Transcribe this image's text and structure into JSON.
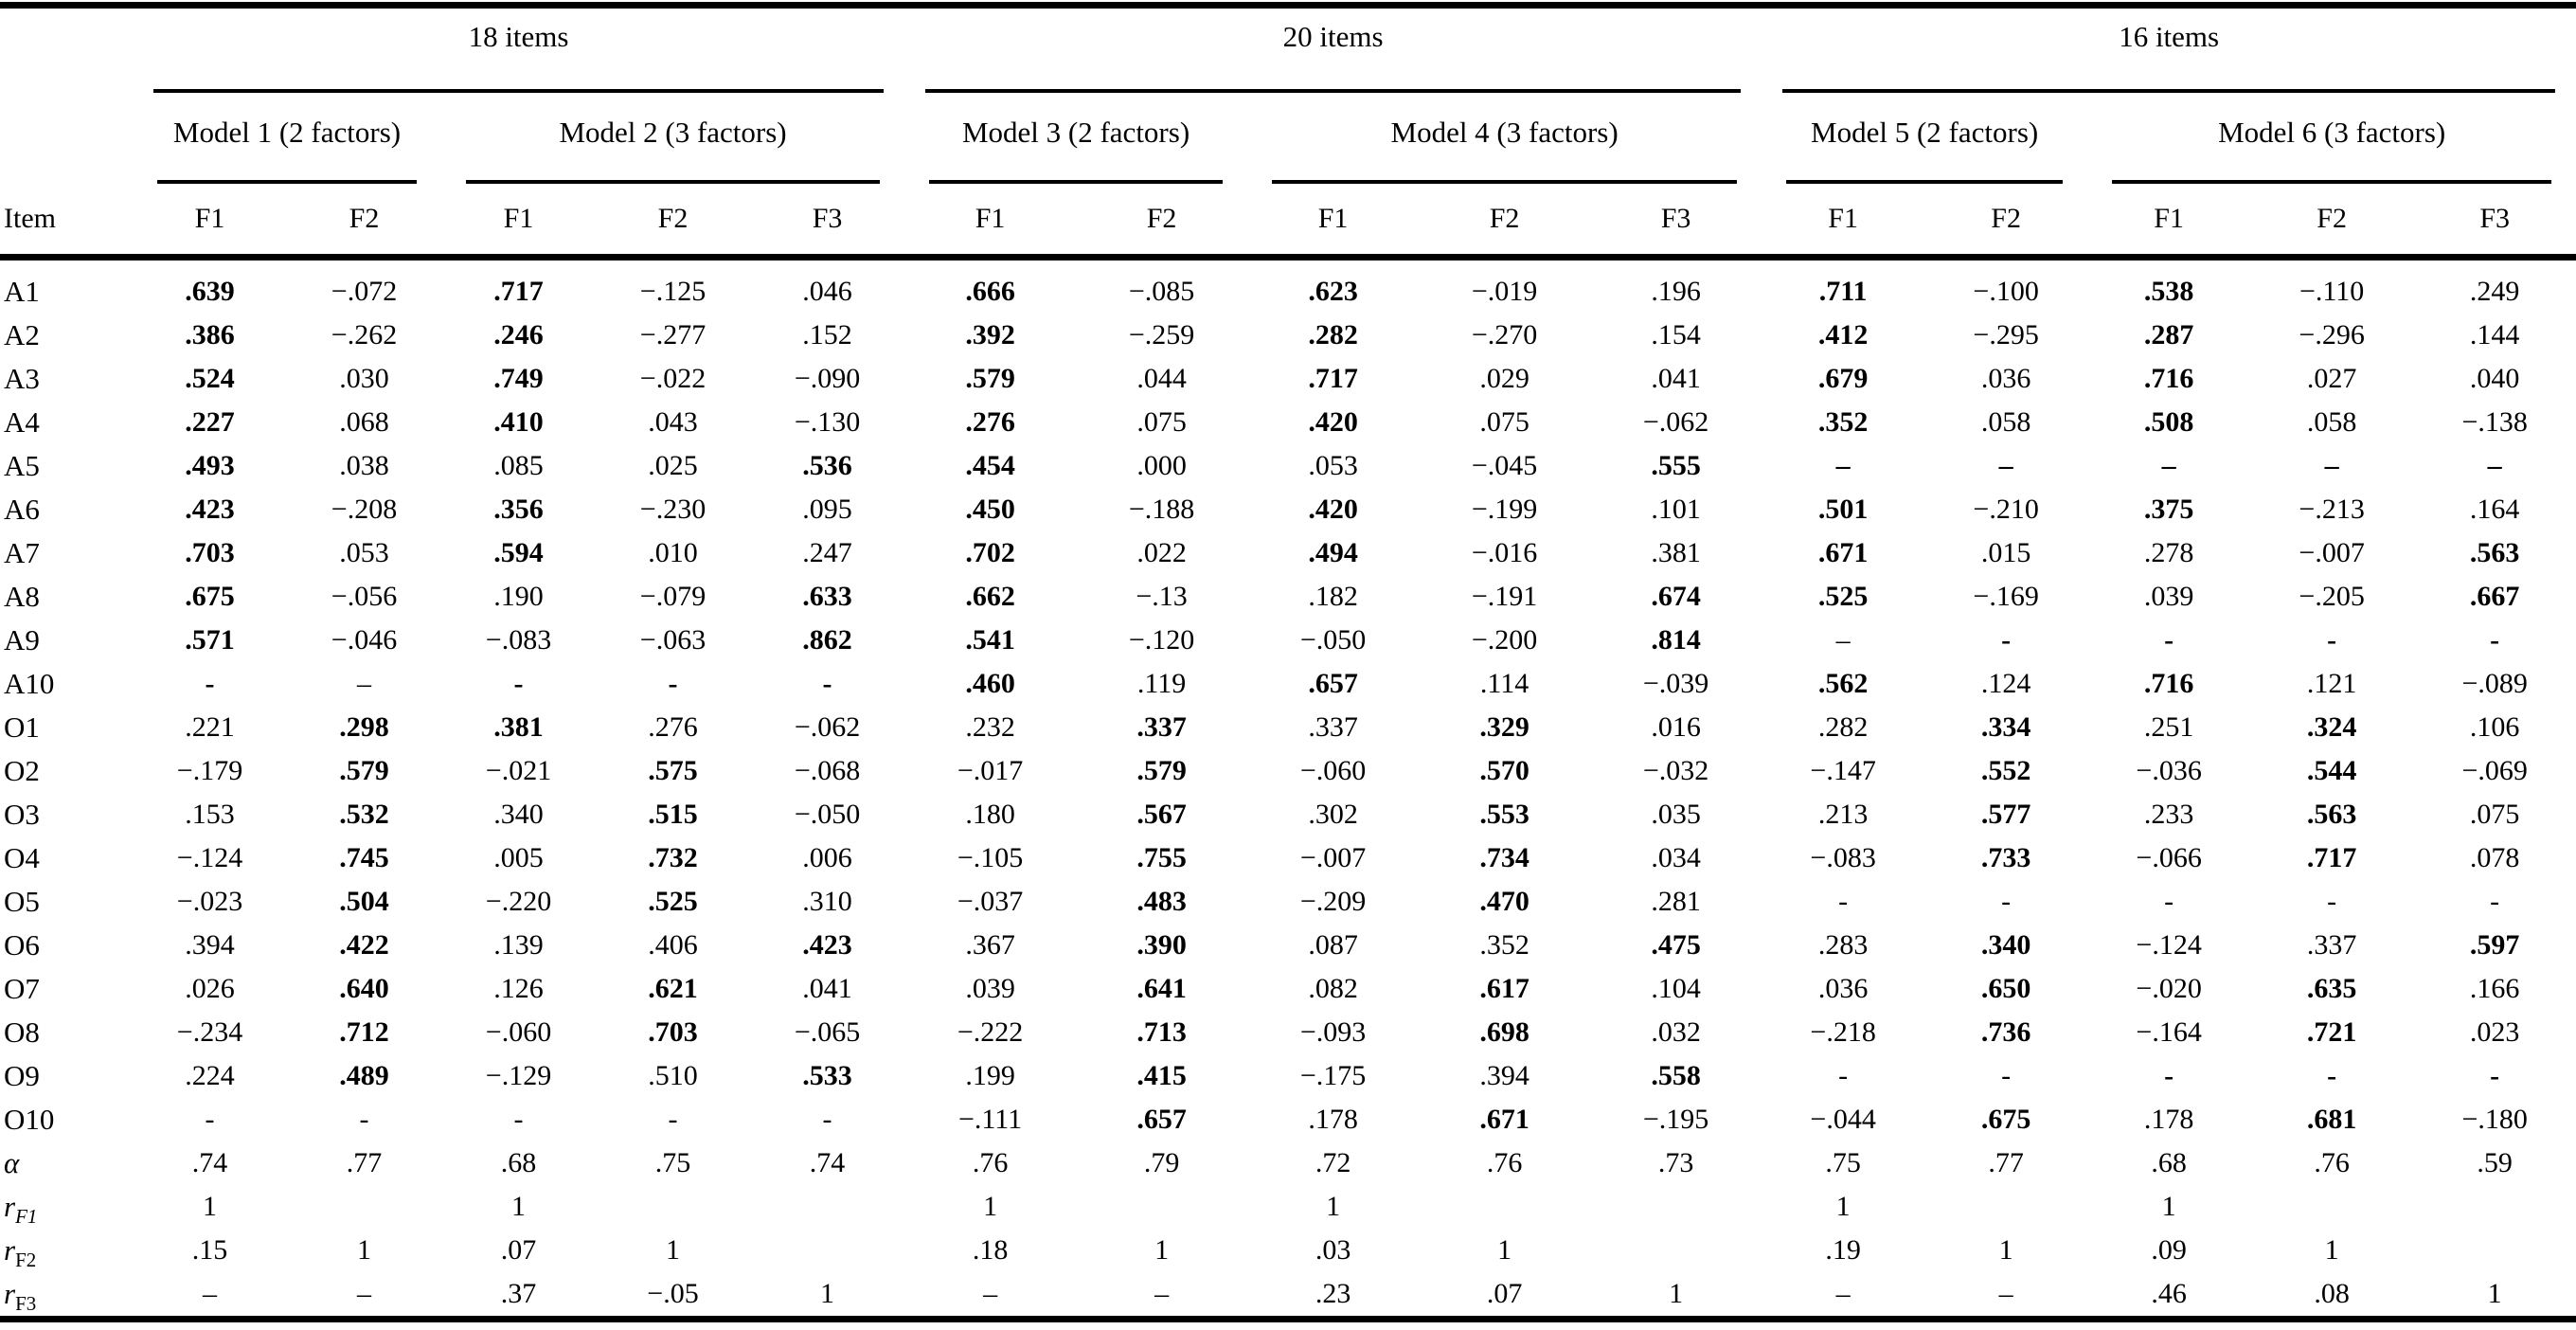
{
  "table": {
    "bold_marker": "*",
    "item_header": "Item",
    "sections": [
      {
        "title": "18 items",
        "models": [
          {
            "title": "Model 1 (2 factors)",
            "factors": [
              "F1",
              "F2"
            ]
          },
          {
            "title": "Model 2 (3 factors)",
            "factors": [
              "F1",
              "F2",
              "F3"
            ]
          }
        ]
      },
      {
        "title": "20 items",
        "models": [
          {
            "title": "Model 3 (2 factors)",
            "factors": [
              "F1",
              "F2"
            ]
          },
          {
            "title": "Model 4 (3 factors)",
            "factors": [
              "F1",
              "F2",
              "F3"
            ]
          }
        ]
      },
      {
        "title": "16 items",
        "models": [
          {
            "title": "Model 5 (2 factors)",
            "factors": [
              "F1",
              "F2"
            ]
          },
          {
            "title": "Model 6 (3 factors)",
            "factors": [
              "F1",
              "F2",
              "F3"
            ]
          }
        ]
      }
    ],
    "rows": [
      {
        "label": "A1",
        "cells": [
          "*.639",
          "−.072",
          "*.717",
          "−.125",
          ".046",
          "*.666",
          "−.085",
          "*.623",
          "−.019",
          ".196",
          "*.711",
          "−.100",
          "*.538",
          "−.110",
          ".249"
        ]
      },
      {
        "label": "A2",
        "cells": [
          "*.386",
          "−.262",
          "*.246",
          "−.277",
          ".152",
          "*.392",
          "−.259",
          "*.282",
          "−.270",
          ".154",
          "*.412",
          "−.295",
          "*.287",
          "−.296",
          ".144"
        ]
      },
      {
        "label": "A3",
        "cells": [
          "*.524",
          ".030",
          "*.749",
          "−.022",
          "−.090",
          "*.579",
          ".044",
          "*.717",
          ".029",
          ".041",
          "*.679",
          ".036",
          "*.716",
          ".027",
          ".040"
        ]
      },
      {
        "label": "A4",
        "cells": [
          "*.227",
          ".068",
          "*.410",
          ".043",
          "−.130",
          "*.276",
          ".075",
          "*.420",
          ".075",
          "−.062",
          "*.352",
          ".058",
          "*.508",
          ".058",
          "−.138"
        ]
      },
      {
        "label": "A5",
        "cells": [
          "*.493",
          ".038",
          ".085",
          ".025",
          "*.536",
          "*.454",
          ".000",
          ".053",
          "−.045",
          "*.555",
          "*–",
          "*–",
          "*–",
          "*–",
          "*–"
        ]
      },
      {
        "label": "A6",
        "cells": [
          "*.423",
          "−.208",
          "*.356",
          "−.230",
          ".095",
          "*.450",
          "−.188",
          "*.420",
          "−.199",
          ".101",
          "*.501",
          "−.210",
          "*.375",
          "−.213",
          ".164"
        ]
      },
      {
        "label": "A7",
        "cells": [
          "*.703",
          ".053",
          "*.594",
          ".010",
          ".247",
          "*.702",
          ".022",
          "*.494",
          "−.016",
          ".381",
          "*.671",
          ".015",
          ".278",
          "−.007",
          "*.563"
        ]
      },
      {
        "label": "A8",
        "cells": [
          "*.675",
          "−.056",
          ".190",
          "−.079",
          "*.633",
          "*.662",
          "−.13",
          ".182",
          "−.191",
          "*.674",
          "*.525",
          "−.169",
          ".039",
          "−.205",
          "*.667"
        ]
      },
      {
        "label": "A9",
        "cells": [
          "*.571",
          "−.046",
          "−.083",
          "−.063",
          "*.862",
          "*.541",
          "−.120",
          "−.050",
          "−.200",
          "*.814",
          "–",
          "*-",
          "*-",
          "*-",
          "*-"
        ]
      },
      {
        "label": "A10",
        "cells": [
          "*-",
          "–",
          "*-",
          "*-",
          "*-",
          "*.460",
          ".119",
          "*.657",
          ".114",
          "−.039",
          "*.562",
          ".124",
          "*.716",
          ".121",
          "−.089"
        ]
      },
      {
        "label": "O1",
        "cells": [
          ".221",
          "*.298",
          "*.381",
          ".276",
          "−.062",
          ".232",
          "*.337",
          ".337",
          "*.329",
          ".016",
          ".282",
          "*.334",
          ".251",
          "*.324",
          ".106"
        ]
      },
      {
        "label": "O2",
        "cells": [
          "−.179",
          "*.579",
          "−.021",
          "*.575",
          "−.068",
          "−.017",
          "*.579",
          "−.060",
          "*.570",
          "−.032",
          "−.147",
          "*.552",
          "−.036",
          "*.544",
          "−.069"
        ]
      },
      {
        "label": "O3",
        "cells": [
          ".153",
          "*.532",
          ".340",
          "*.515",
          "−.050",
          ".180",
          "*.567",
          ".302",
          "*.553",
          ".035",
          ".213",
          "*.577",
          ".233",
          "*.563",
          ".075"
        ]
      },
      {
        "label": "O4",
        "cells": [
          "−.124",
          "*.745",
          ".005",
          "*.732",
          ".006",
          "−.105",
          "*.755",
          "−.007",
          "*.734",
          ".034",
          "−.083",
          "*.733",
          "−.066",
          "*.717",
          ".078"
        ]
      },
      {
        "label": "O5",
        "cells": [
          "−.023",
          "*.504",
          "−.220",
          "*.525",
          ".310",
          "−.037",
          "*.483",
          "−.209",
          "*.470",
          ".281",
          "-",
          "-",
          "-",
          "-",
          "-"
        ]
      },
      {
        "label": "O6",
        "cells": [
          ".394",
          "*.422",
          ".139",
          ".406",
          "*.423",
          ".367",
          "*.390",
          ".087",
          ".352",
          "*.475",
          ".283",
          "*.340",
          "−.124",
          ".337",
          "*.597"
        ]
      },
      {
        "label": "O7",
        "cells": [
          ".026",
          "*.640",
          ".126",
          "*.621",
          ".041",
          ".039",
          "*.641",
          ".082",
          "*.617",
          ".104",
          ".036",
          "*.650",
          "−.020",
          "*.635",
          ".166"
        ]
      },
      {
        "label": "O8",
        "cells": [
          "−.234",
          "*.712",
          "−.060",
          "*.703",
          "−.065",
          "−.222",
          "*.713",
          "−.093",
          "*.698",
          ".032",
          "−.218",
          "*.736",
          "−.164",
          "*.721",
          ".023"
        ]
      },
      {
        "label": "O9",
        "cells": [
          ".224",
          "*.489",
          "−.129",
          ".510",
          "*.533",
          ".199",
          "*.415",
          "−.175",
          ".394",
          "*.558",
          "-",
          "-",
          "*-",
          "*-",
          "*-"
        ]
      },
      {
        "label": "O10",
        "cells": [
          "-",
          "-",
          "-",
          "-",
          "-",
          "−.111",
          "*.657",
          ".178",
          "*.671",
          "−.195",
          "−.044",
          "*.675",
          ".178",
          "*.681",
          "−.180"
        ]
      },
      {
        "label": "α",
        "italic": true,
        "cells": [
          ".74",
          ".77",
          ".68",
          ".75",
          ".74",
          ".76",
          ".79",
          ".72",
          ".76",
          ".73",
          ".75",
          ".77",
          ".68",
          ".76",
          ".59"
        ]
      },
      {
        "label": "r",
        "sub": "F1",
        "sub_italic": true,
        "cells": [
          "1",
          "",
          "1",
          "",
          "",
          "1",
          "",
          "1",
          "",
          "",
          "1",
          "",
          "1",
          "",
          ""
        ]
      },
      {
        "label": "r",
        "sub": "F2",
        "sub_italic": false,
        "cells": [
          ".15",
          "1",
          ".07",
          "1",
          "",
          ".18",
          "1",
          ".03",
          "1",
          "",
          ".19",
          "1",
          ".09",
          "1",
          ""
        ]
      },
      {
        "label": "r",
        "sub": "F3",
        "sub_italic": false,
        "cells": [
          "–",
          "–",
          ".37",
          "−.05",
          "1",
          "–",
          "–",
          ".23",
          ".07",
          "1",
          "–",
          "–",
          ".46",
          ".08",
          "1"
        ]
      }
    ]
  }
}
